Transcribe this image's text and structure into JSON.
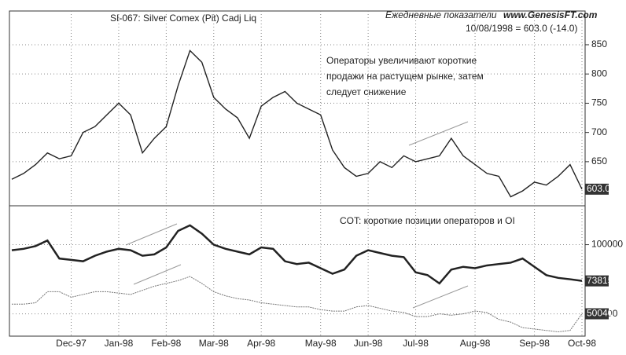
{
  "header": {
    "title": "SI-067:  Silver Comex (Pit) Cadj Liq",
    "subtitle": "Ежедневные показатели",
    "site": "www.GenesisFT.com",
    "quote": "10/08/1998 = 603.0 (-14.0)"
  },
  "chart_data": [
    {
      "type": "line",
      "annotation": [
        "Операторы увеличивают короткие",
        "продажи на растущем рынке, затем",
        "следует снижение"
      ],
      "categories": [
        null,
        null,
        null,
        null,
        null,
        "Dec-97",
        null,
        null,
        null,
        "Jan-98",
        null,
        null,
        null,
        "Feb-98",
        null,
        null,
        null,
        "Mar-98",
        null,
        null,
        null,
        "Apr-98",
        null,
        null,
        null,
        null,
        "May-98",
        null,
        null,
        null,
        "Jun-98",
        null,
        null,
        null,
        "Jul-98",
        null,
        null,
        null,
        null,
        "Aug-98",
        null,
        null,
        null,
        null,
        "Sep-98",
        null,
        null,
        null,
        "Oct-98"
      ],
      "series": [
        {
          "color": "#222222",
          "values": [
            620,
            630,
            645,
            665,
            655,
            660,
            700,
            710,
            730,
            750,
            730,
            665,
            690,
            710,
            780,
            840,
            820,
            760,
            740,
            725,
            690,
            745,
            760,
            770,
            750,
            740,
            730,
            670,
            640,
            625,
            630,
            650,
            640,
            660,
            650,
            655,
            660,
            690,
            660,
            645,
            630,
            625,
            590,
            600,
            615,
            610,
            625,
            645,
            603
          ],
          "last_label": "603.0"
        }
      ],
      "ylim": [
        580,
        905
      ],
      "yticks": [
        650,
        700,
        750,
        800,
        850
      ],
      "grid": true
    },
    {
      "type": "line",
      "annotation": "COT: короткие позиции операторов и OI",
      "series": [
        {
          "color": "#222222",
          "values": [
            96000,
            97000,
            99000,
            103000,
            90000,
            89000,
            88000,
            92000,
            95000,
            97000,
            96000,
            92000,
            93000,
            98000,
            110000,
            114000,
            108000,
            100000,
            97000,
            95000,
            93000,
            98000,
            97000,
            88000,
            86000,
            87000,
            83000,
            79000,
            82000,
            92000,
            96000,
            94000,
            92000,
            91000,
            80000,
            78000,
            72000,
            82000,
            84000,
            83000,
            85000,
            86000,
            87000,
            90000,
            84000,
            78000,
            76000,
            75000,
            73815
          ]
        },
        {
          "color": "#777777",
          "values": [
            57000,
            57000,
            58000,
            66000,
            66000,
            62000,
            64000,
            66000,
            66000,
            65000,
            64000,
            67000,
            70000,
            72000,
            74000,
            77000,
            72000,
            66000,
            63000,
            61000,
            60000,
            58000,
            57000,
            56000,
            55000,
            55000,
            53000,
            52000,
            52000,
            55000,
            56000,
            54000,
            52000,
            51000,
            48000,
            48000,
            50000,
            49000,
            50000,
            52000,
            51000,
            46000,
            44000,
            40000,
            39000,
            38000,
            37000,
            38000,
            50040
          ]
        }
      ],
      "ylim": [
        35000,
        127000
      ],
      "yticks": [
        50000,
        100000
      ],
      "grid": true
    }
  ]
}
